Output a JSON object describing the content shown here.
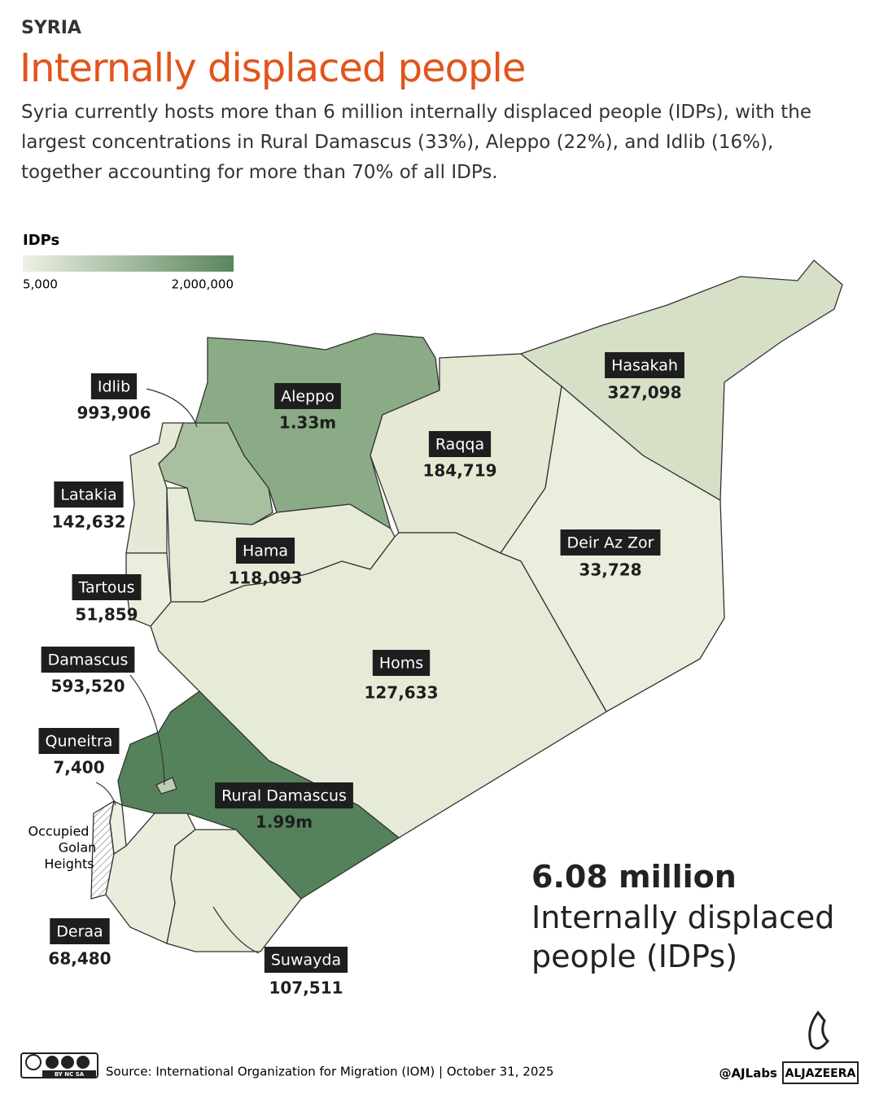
{
  "header": {
    "kicker": "SYRIA",
    "title": "Internally displaced people",
    "description": "Syria currently hosts more than 6 million internally displaced people (IDPs), with the largest concentrations in Rural Damascus (33%), Aleppo (22%), and Idlib (16%), together accounting for more than 70% of all IDPs."
  },
  "legend": {
    "title": "IDPs",
    "min_label": "5,000",
    "max_label": "2,000,000",
    "colors": [
      "#eef1e4",
      "#5a865c"
    ]
  },
  "regions": [
    {
      "name": "Idlib",
      "value": "993,906",
      "color": "#a8c0a0"
    },
    {
      "name": "Aleppo",
      "value": "1.33m",
      "color": "#8aab86"
    },
    {
      "name": "Raqqa",
      "value": "184,719",
      "color": "#e3e9d3"
    },
    {
      "name": "Hasakah",
      "value": "327,098",
      "color": "#d6e0c7"
    },
    {
      "name": "Latakia",
      "value": "142,632",
      "color": "#e5ead6"
    },
    {
      "name": "Hama",
      "value": "118,093",
      "color": "#e6ebd8"
    },
    {
      "name": "Deir Az Zor",
      "value": "33,728",
      "color": "#eaeedd"
    },
    {
      "name": "Tartous",
      "value": "51,859",
      "color": "#eaeedd"
    },
    {
      "name": "Damascus",
      "value": "593,520",
      "color": "#bccdb2"
    },
    {
      "name": "Homs",
      "value": "127,633",
      "color": "#e6ebd8"
    },
    {
      "name": "Quneitra",
      "value": "7,400",
      "color": "#edf0e3"
    },
    {
      "name": "Rural Damascus",
      "value": "1.99m",
      "color": "#55825a"
    },
    {
      "name": "Deraa",
      "value": "68,480",
      "color": "#e9eddb"
    },
    {
      "name": "Suwayda",
      "value": "107,511",
      "color": "#e7ecd9"
    }
  ],
  "annotation": [
    "Occupied",
    "Golan",
    "Heights"
  ],
  "summary": {
    "figure": "6.08 million",
    "label": "Internally displaced people (IDPs)"
  },
  "footer": {
    "license": "BY NC SA",
    "source": "Source:  International Organization for Migration (IOM) | October 31, 2025",
    "handle": "@AJLabs",
    "brand": "ALJAZEERA"
  }
}
